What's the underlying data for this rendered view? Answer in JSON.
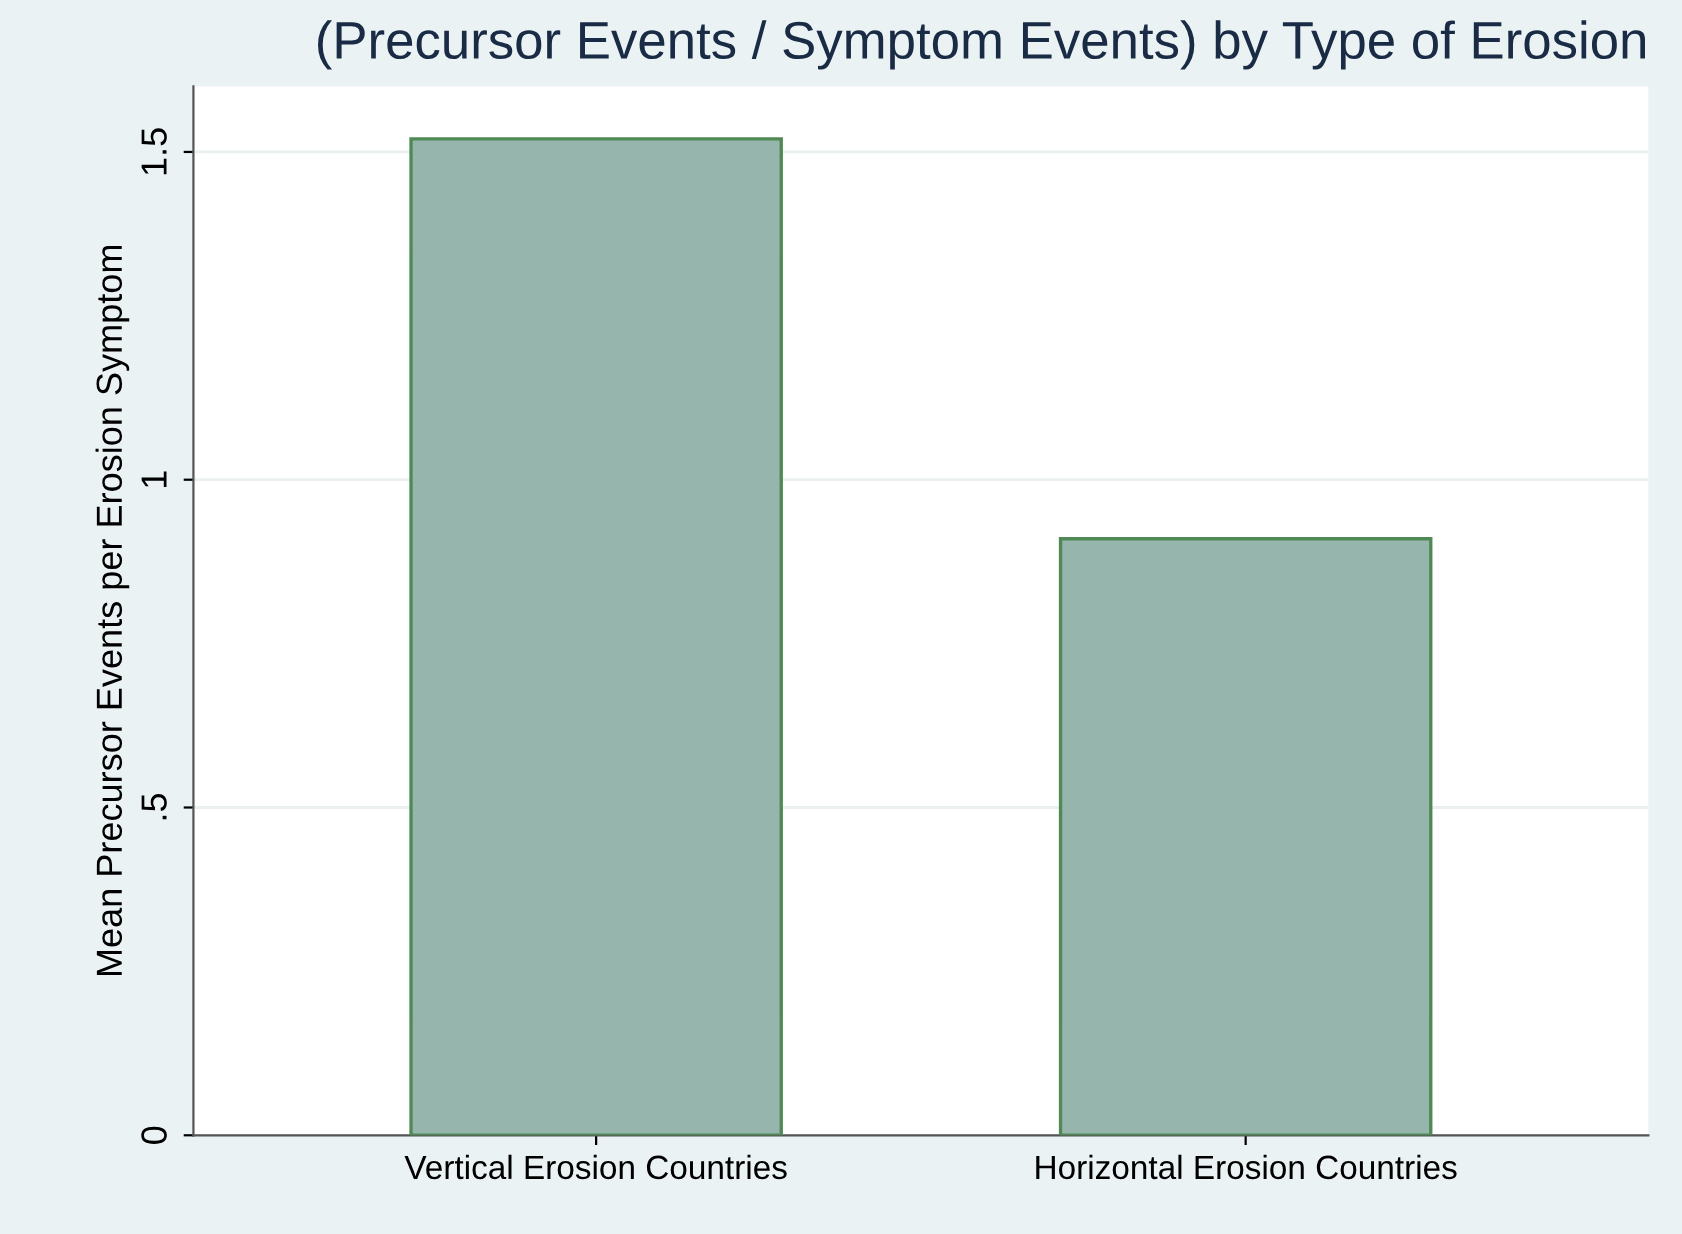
{
  "chart_data": {
    "type": "bar",
    "title": "(Precursor Events / Symptom Events) by Type of Erosion",
    "ylabel": "Mean Precursor Events per Erosion Symptom",
    "categories": [
      "Vertical Erosion Countries",
      "Horizontal Erosion Countries"
    ],
    "series": [
      {
        "color": "#96b5ac",
        "values": [
          1.52,
          0.91
        ]
      }
    ],
    "ylim": [
      0,
      1.6
    ],
    "yticks": [
      0,
      {
        "value": 0.5,
        "label": ".5"
      },
      1,
      1.5
    ],
    "grid": "y"
  }
}
